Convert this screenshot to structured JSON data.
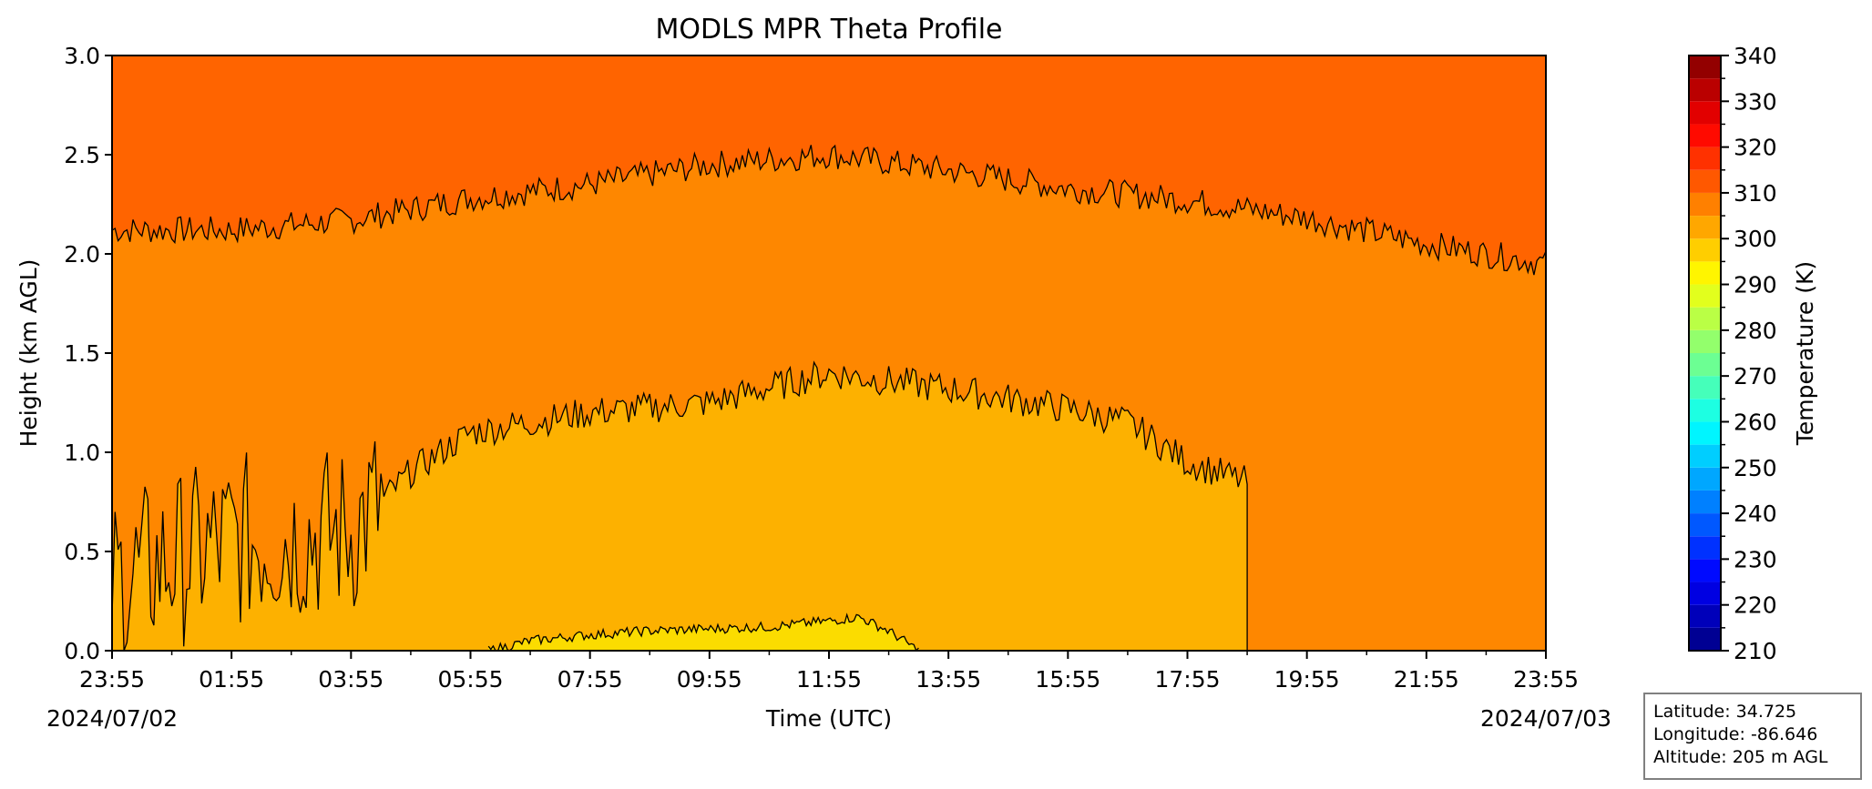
{
  "chart_data": {
    "type": "contour",
    "title": "MODLS MPR Theta Profile",
    "xlabel": "Time (UTC)",
    "ylabel": "Height (km AGL)",
    "x_ticks": [
      "23:55",
      "01:55",
      "03:55",
      "05:55",
      "07:55",
      "09:55",
      "11:55",
      "13:55",
      "15:55",
      "17:55",
      "19:55",
      "21:55",
      "23:55"
    ],
    "x_date_start": "2024/07/02",
    "x_date_end": "2024/07/03",
    "ylim": [
      0,
      3.0
    ],
    "y_ticks": [
      "0.0",
      "0.5",
      "1.0",
      "1.5",
      "2.0",
      "2.5",
      "3.0"
    ],
    "colorbar": {
      "label": "Temperature (K)",
      "range": [
        210,
        340
      ],
      "step": 5,
      "ticks": [
        "210",
        "220",
        "230",
        "240",
        "250",
        "260",
        "270",
        "280",
        "290",
        "300",
        "310",
        "320",
        "330",
        "340"
      ]
    },
    "contour_levels": [
      {
        "level_K": 300,
        "fill_color": "#fbdc00"
      },
      {
        "level_K": 305,
        "fill_color": "#fdb100"
      },
      {
        "level_K": 310,
        "fill_color": "#fe8700"
      },
      {
        "level_K": 315,
        "fill_color": "#ff6400"
      }
    ],
    "contour_boundaries": [
      {
        "between_K": [
          310,
          315
        ],
        "time_h": [
          0,
          2,
          4,
          6,
          8,
          10,
          12,
          14,
          16,
          18,
          20,
          22,
          24
        ],
        "height_km": [
          2.12,
          2.12,
          2.17,
          2.28,
          2.35,
          2.45,
          2.5,
          2.42,
          2.33,
          2.27,
          2.18,
          2.05,
          1.95
        ]
      },
      {
        "between_K": [
          305,
          310
        ],
        "time_h": [
          0,
          2,
          4,
          5,
          6,
          8,
          10,
          12,
          14,
          16,
          17,
          18,
          19
        ],
        "height_km": [
          0.35,
          0.55,
          0.6,
          0.9,
          1.1,
          1.2,
          1.25,
          1.4,
          1.32,
          1.22,
          1.15,
          0.95,
          0.85
        ]
      },
      {
        "between_K": [
          300,
          305
        ],
        "time_h": [
          6.3,
          7,
          8,
          9,
          10,
          11,
          12,
          12.5,
          13,
          13.5
        ],
        "height_km": [
          0.0,
          0.05,
          0.08,
          0.1,
          0.11,
          0.12,
          0.15,
          0.17,
          0.1,
          0.0
        ]
      }
    ],
    "info": {
      "latitude": "Latitude: 34.725",
      "longitude": "Longitude: -86.646",
      "altitude": "Altitude: 205 m AGL"
    }
  }
}
